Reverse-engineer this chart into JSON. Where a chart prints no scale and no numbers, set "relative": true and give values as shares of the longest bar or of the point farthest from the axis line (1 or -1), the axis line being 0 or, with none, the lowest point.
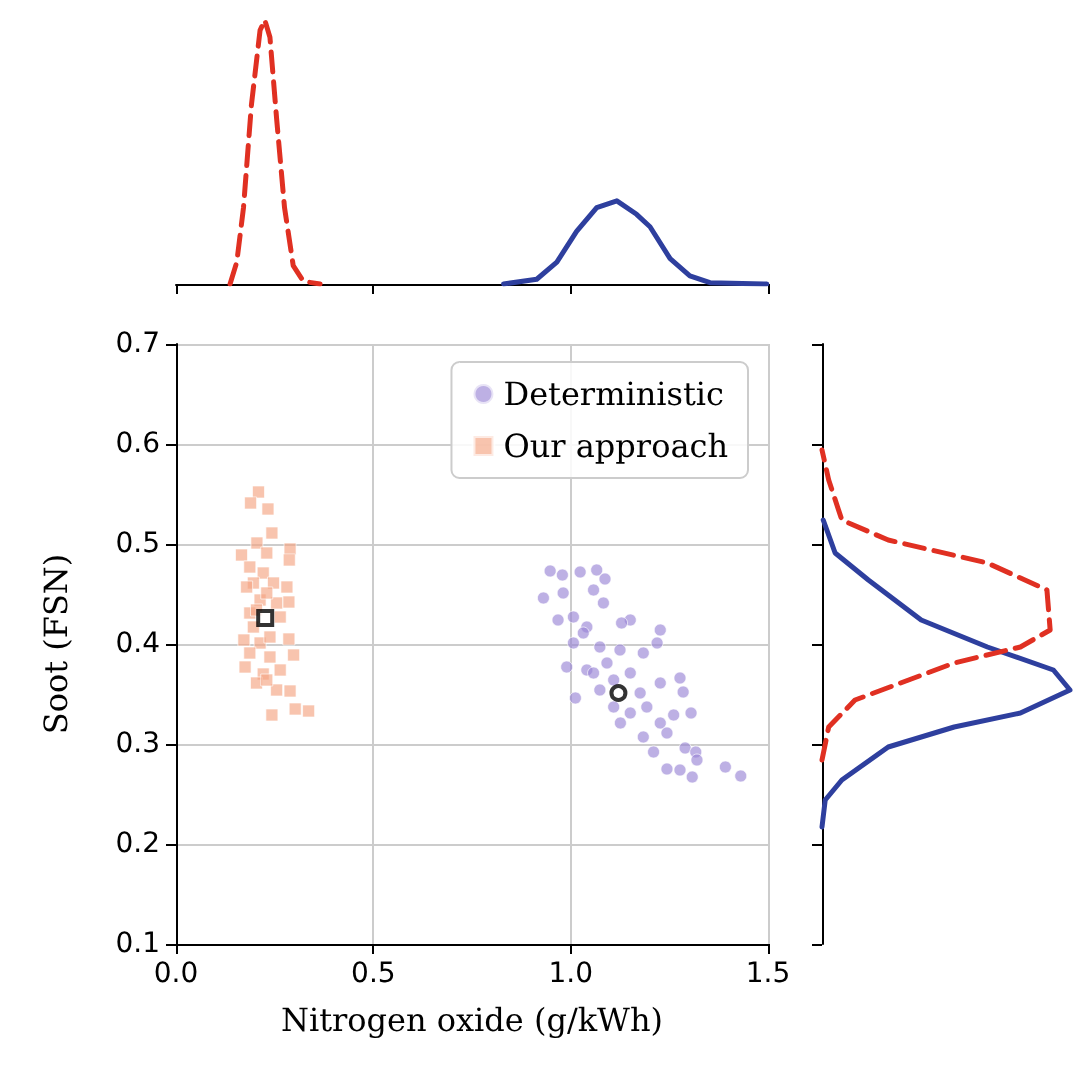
{
  "chart_data": [
    {
      "type": "line",
      "relative": true,
      "xlim": [
        0,
        1.5
      ],
      "xticks": [
        0,
        0.5,
        1,
        1.5
      ],
      "tick_labels": false,
      "grid": false,
      "legend": false,
      "marker": "none",
      "series": [
        {
          "color": "#e03022",
          "line_style": "dashed",
          "x": [
            0.137,
            0.154,
            0.171,
            0.191,
            0.213,
            0.225,
            0.238,
            0.255,
            0.275,
            0.297,
            0.323,
            0.365
          ],
          "values": [
            0,
            0.083,
            0.289,
            0.677,
            0.961,
            1,
            0.935,
            0.625,
            0.289,
            0.07,
            0.01,
            0
          ]
        },
        {
          "color": "#2e3f9e",
          "line_style": "solid",
          "x": [
            0.83,
            0.914,
            0.965,
            1.015,
            1.066,
            1.117,
            1.167,
            1.201,
            1.252,
            1.302,
            1.353,
            1.497
          ],
          "values": [
            0,
            0.018,
            0.083,
            0.199,
            0.289,
            0.315,
            0.264,
            0.217,
            0.096,
            0.031,
            0.005,
            0
          ]
        }
      ]
    },
    {
      "type": "scatter",
      "xlabel": "Nitrogen oxide (g/kWh)",
      "ylabel": "Soot (FSN)",
      "xlim": [
        0,
        1.5
      ],
      "xticks": [
        {
          "value": 0,
          "label": "0.0"
        },
        0.5,
        {
          "value": 1,
          "label": "1.0"
        },
        1.5
      ],
      "ylim": [
        0.1,
        0.7
      ],
      "yticks": [
        0.1,
        0.2,
        0.3,
        0.4,
        0.5,
        0.6,
        0.7
      ],
      "grid": true,
      "legend": "top right",
      "series": [
        {
          "name": "Deterministic",
          "color": "#9a86d6",
          "marker": "circle",
          "x": [
            0.948,
            0.979,
            1.024,
            1.066,
            1.087,
            0.931,
            0.981,
            1.058,
            1.083,
            0.968,
            1.007,
            1.041,
            1.151,
            1.129,
            1.227,
            1.007,
            1.074,
            1.125,
            1.219,
            1.184,
            0.99,
            1.041,
            1.092,
            1.151,
            1.227,
            1.277,
            1.012,
            1.074,
            1.176,
            1.285,
            1.109,
            1.151,
            1.193,
            1.261,
            1.305,
            1.126,
            1.227,
            1.184,
            1.244,
            1.21,
            1.29,
            1.317,
            1.32,
            1.244,
            1.277,
            1.308,
            1.392,
            1.431,
            1.058,
            1.109,
            1.032
          ],
          "values": [
            0.473,
            0.469,
            0.472,
            0.474,
            0.465,
            0.446,
            0.451,
            0.454,
            0.441,
            0.424,
            0.427,
            0.417,
            0.424,
            0.421,
            0.414,
            0.401,
            0.397,
            0.394,
            0.401,
            0.391,
            0.377,
            0.374,
            0.381,
            0.371,
            0.361,
            0.366,
            0.346,
            0.354,
            0.351,
            0.352,
            0.337,
            0.331,
            0.337,
            0.329,
            0.331,
            0.321,
            0.321,
            0.307,
            0.311,
            0.292,
            0.296,
            0.292,
            0.284,
            0.275,
            0.274,
            0.267,
            0.277,
            0.268,
            0.371,
            0.364,
            0.411
          ]
        },
        {
          "name": "Our approach",
          "color": "#f4a582",
          "marker": "square",
          "x": [
            0.209,
            0.189,
            0.233,
            0.243,
            0.205,
            0.289,
            0.287,
            0.166,
            0.23,
            0.187,
            0.221,
            0.196,
            0.247,
            0.281,
            0.179,
            0.286,
            0.213,
            0.255,
            0.187,
            0.264,
            0.196,
            0.286,
            0.172,
            0.213,
            0.298,
            0.187,
            0.238,
            0.175,
            0.221,
            0.264,
            0.204,
            0.255,
            0.289,
            0.23,
            0.243,
            0.302,
            0.336,
            0.23,
            0.238,
            0.204
          ],
          "values": [
            0.552,
            0.541,
            0.535,
            0.511,
            0.501,
            0.495,
            0.484,
            0.489,
            0.491,
            0.477,
            0.471,
            0.461,
            0.461,
            0.457,
            0.457,
            0.442,
            0.444,
            0.441,
            0.431,
            0.427,
            0.417,
            0.405,
            0.404,
            0.401,
            0.389,
            0.391,
            0.387,
            0.377,
            0.37,
            0.374,
            0.361,
            0.354,
            0.353,
            0.364,
            0.329,
            0.335,
            0.333,
            0.451,
            0.407,
            0.434
          ]
        },
        {
          "color": "#000000",
          "marker": "circle",
          "x": [
            1.121
          ],
          "values": [
            0.351
          ]
        },
        {
          "color": "#000000",
          "marker": "square",
          "x": [
            0.226
          ],
          "values": [
            0.426
          ]
        }
      ]
    },
    {
      "type": "line",
      "orientation": "horizontal",
      "relative": true,
      "ylim": [
        0.1,
        0.7
      ],
      "yticks": [
        0.1,
        0.2,
        0.3,
        0.4,
        0.5,
        0.6,
        0.7
      ],
      "tick_labels": false,
      "grid": false,
      "legend": false,
      "marker": "none",
      "series": [
        {
          "color": "#2e3f9e",
          "line_style": "solid",
          "x": [
            0.217,
            0.244,
            0.264,
            0.297,
            0.317,
            0.331,
            0.354,
            0.374,
            0.397,
            0.424,
            0.464,
            0.491,
            0.524
          ],
          "values": [
            0,
            0.013,
            0.08,
            0.267,
            0.533,
            0.8,
            1,
            0.933,
            0.667,
            0.4,
            0.187,
            0.053,
            0.005
          ]
        },
        {
          "color": "#e03022",
          "line_style": "dashed",
          "x": [
            0.284,
            0.317,
            0.344,
            0.381,
            0.397,
            0.414,
            0.454,
            0.481,
            0.504,
            0.524,
            0.564,
            0.594
          ],
          "values": [
            0,
            0.027,
            0.133,
            0.533,
            0.8,
            0.92,
            0.907,
            0.667,
            0.267,
            0.08,
            0.027,
            0
          ]
        }
      ]
    }
  ]
}
